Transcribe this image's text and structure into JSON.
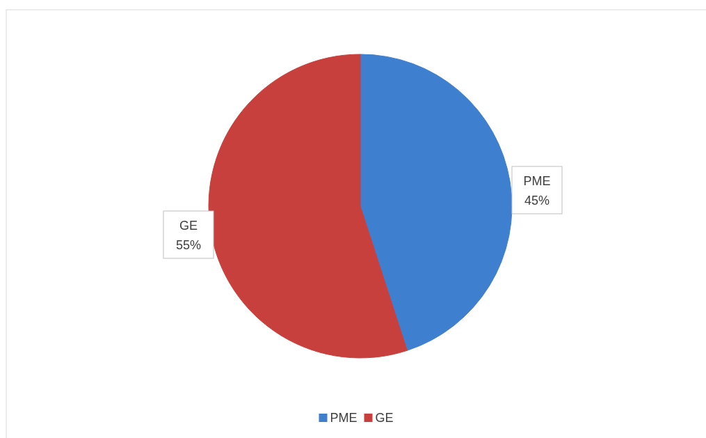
{
  "chart_data": {
    "type": "pie",
    "categories": [
      "PME",
      "GE"
    ],
    "values": [
      45,
      55
    ],
    "colors": [
      "#3f7fd0",
      "#c8403d"
    ],
    "value_labels": [
      "45%",
      "55%"
    ],
    "legend": "bottom"
  }
}
